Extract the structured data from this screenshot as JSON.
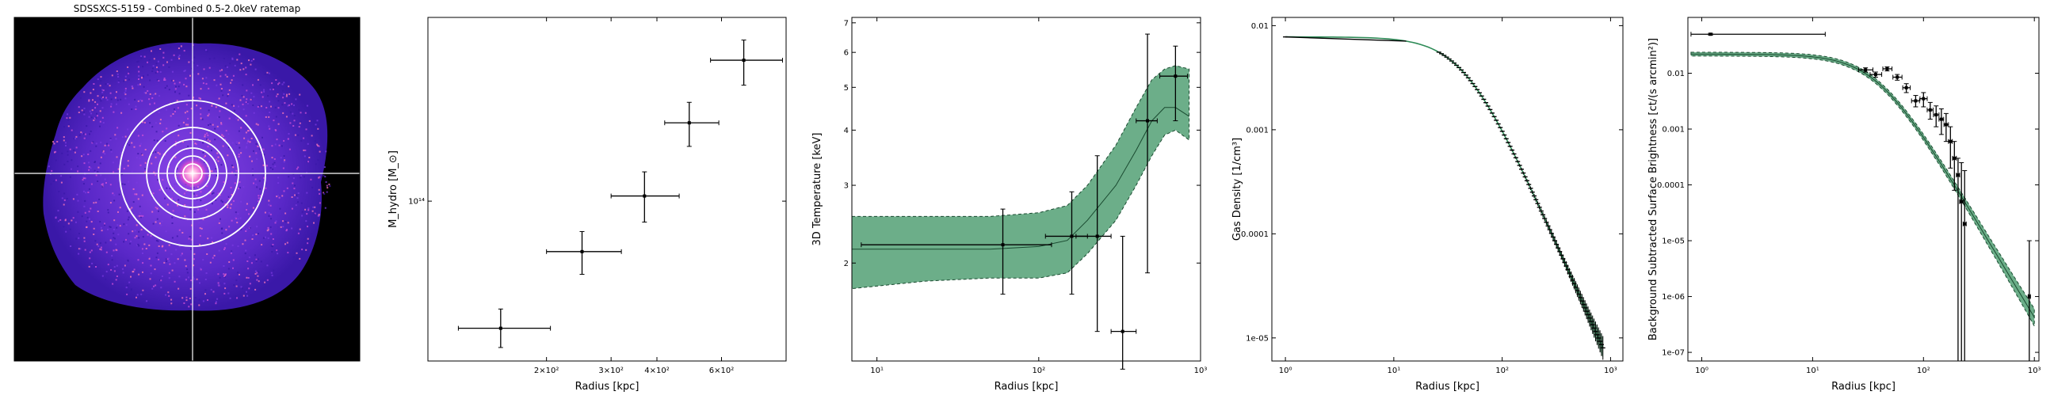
{
  "chart_data": [
    {
      "type": "image",
      "title": "SDSSXCS-5159 - Combined 0.5-2.0keV ratemap",
      "colormap": [
        "#0a0030",
        "#3a18a8",
        "#7a3ae0",
        "#d050d8",
        "#ff7ab8",
        "#ffd0f0"
      ],
      "background": "#000000",
      "annotations": [
        "crosshair",
        "concentric annuli"
      ]
    },
    {
      "type": "scatter",
      "xlabel": "Radius [kpc]",
      "ylabel": "M_hydro [M_⊙]",
      "xscale": "log",
      "yscale": "log",
      "xlim": [
        95,
        900
      ],
      "ylim": [
        22000000000000,
        570000000000000
      ],
      "xticks": [
        {
          "v": 200,
          "label": "2×10²"
        },
        {
          "v": 300,
          "label": "3×10²"
        },
        {
          "v": 400,
          "label": "4×10²"
        },
        {
          "v": 600,
          "label": "6×10²"
        }
      ],
      "yticks": [
        {
          "v": 100000000000000,
          "label": "10¹⁴"
        }
      ],
      "points": [
        {
          "x": 150,
          "xerr": [
            115,
            205
          ],
          "y": 30000000000000,
          "yerr": [
            25000000000000,
            36000000000000
          ]
        },
        {
          "x": 250,
          "xerr": [
            200,
            320
          ],
          "y": 62000000000000,
          "yerr": [
            50000000000000,
            75000000000000
          ]
        },
        {
          "x": 370,
          "xerr": [
            300,
            460
          ],
          "y": 105000000000000,
          "yerr": [
            82000000000000,
            132000000000000
          ]
        },
        {
          "x": 490,
          "xerr": [
            420,
            590
          ],
          "y": 210000000000000,
          "yerr": [
            168000000000000,
            255000000000000
          ]
        },
        {
          "x": 690,
          "xerr": [
            560,
            880
          ],
          "y": 380000000000000,
          "yerr": [
            300000000000000,
            460000000000000
          ]
        }
      ]
    },
    {
      "type": "line",
      "xlabel": "Radius [kpc]",
      "ylabel": "3D Temperature [keV]",
      "xscale": "log",
      "yscale": "log",
      "xlim": [
        7,
        1000
      ],
      "ylim": [
        1.2,
        7.2
      ],
      "xticks": [
        {
          "v": 10,
          "label": "10¹"
        },
        {
          "v": 100,
          "label": "10²"
        },
        {
          "v": 1000,
          "label": "10³"
        }
      ],
      "yticks": [
        {
          "v": 2,
          "label": "2"
        },
        {
          "v": 3,
          "label": "3"
        },
        {
          "v": 4,
          "label": "4"
        },
        {
          "v": 5,
          "label": "5"
        },
        {
          "v": 6,
          "label": "6"
        },
        {
          "v": 7,
          "label": "7"
        }
      ],
      "band_color": "#2e8b57",
      "band": {
        "x": [
          7,
          20,
          50,
          100,
          150,
          200,
          300,
          400,
          500,
          600,
          700,
          850
        ],
        "lower": [
          1.75,
          1.82,
          1.85,
          1.85,
          1.9,
          2.1,
          2.5,
          3.0,
          3.5,
          3.9,
          4.0,
          3.8
        ],
        "upper": [
          2.55,
          2.55,
          2.55,
          2.6,
          2.7,
          3.0,
          3.7,
          4.5,
          5.2,
          5.5,
          5.6,
          5.5
        ],
        "model": [
          2.15,
          2.15,
          2.15,
          2.18,
          2.25,
          2.5,
          3.0,
          3.6,
          4.2,
          4.5,
          4.5,
          4.3
        ]
      },
      "points": [
        {
          "x": 60,
          "xerr": [
            8,
            120
          ],
          "y": 2.2,
          "yerr": [
            1.7,
            2.65
          ]
        },
        {
          "x": 160,
          "xerr": [
            110,
            200
          ],
          "y": 2.3,
          "yerr": [
            1.7,
            2.9
          ]
        },
        {
          "x": 230,
          "xerr": [
            170,
            280
          ],
          "y": 2.3,
          "yerr": [
            1.4,
            3.5
          ]
        },
        {
          "x": 330,
          "xerr": [
            280,
            400
          ],
          "y": 1.4,
          "yerr": [
            1.15,
            2.3
          ]
        },
        {
          "x": 470,
          "xerr": [
            400,
            540
          ],
          "y": 4.2,
          "yerr": [
            1.9,
            6.6
          ]
        },
        {
          "x": 700,
          "xerr": [
            560,
            830
          ],
          "y": 5.3,
          "yerr": [
            4.2,
            6.2
          ]
        }
      ]
    },
    {
      "type": "line",
      "xlabel": "Radius [kpc]",
      "ylabel": "Gas Density [1/cm³]",
      "xscale": "log",
      "yscale": "log",
      "xlim": [
        0.75,
        1300
      ],
      "ylim": [
        6e-06,
        0.012
      ],
      "xticks": [
        {
          "v": 1,
          "label": "10⁰"
        },
        {
          "v": 10,
          "label": "10¹"
        },
        {
          "v": 100,
          "label": "10²"
        },
        {
          "v": 1000,
          "label": "10³"
        }
      ],
      "yticks": [
        {
          "v": 0.01,
          "label": "0.01"
        },
        {
          "v": 0.001,
          "label": "0.001"
        },
        {
          "v": 0.0001,
          "label": "0.0001"
        },
        {
          "v": 1e-05,
          "label": "1e-05"
        }
      ],
      "line_color": "#2e8b57",
      "curve": {
        "n0": 0.0078,
        "rc": 45,
        "beta": 0.78
      },
      "data_range": [
        1,
        850
      ]
    },
    {
      "type": "line",
      "xlabel": "Radius [kpc]",
      "ylabel": "Background Subtracted Surface Brightness [ct/(s arcmin²)]",
      "xscale": "log",
      "yscale": "log",
      "xlim": [
        0.75,
        1100
      ],
      "ylim": [
        7e-08,
        0.1
      ],
      "xticks": [
        {
          "v": 1,
          "label": "10⁰"
        },
        {
          "v": 10,
          "label": "10¹"
        },
        {
          "v": 100,
          "label": "10²"
        },
        {
          "v": 1000,
          "label": "10³"
        }
      ],
      "yticks": [
        {
          "v": 0.01,
          "label": "0.01"
        },
        {
          "v": 0.001,
          "label": "0.001"
        },
        {
          "v": 0.0001,
          "label": "0.0001"
        },
        {
          "v": 1e-05,
          "label": "1e-05"
        },
        {
          "v": 1e-06,
          "label": "1e-06"
        },
        {
          "v": 1e-07,
          "label": "1e-07"
        }
      ],
      "band_color": "#2e8b57",
      "curve": {
        "S0": 0.022,
        "rc": 38,
        "beta": 0.72
      },
      "points": [
        {
          "x": 1.2,
          "xerr": [
            0.8,
            13
          ],
          "y": 0.05,
          "yerr": [
            0.048,
            0.052
          ]
        },
        {
          "x": 30,
          "xerr": [
            26,
            35
          ],
          "y": 0.0115,
          "yerr": [
            0.0105,
            0.0125
          ]
        },
        {
          "x": 37,
          "xerr": [
            33,
            42
          ],
          "y": 0.0095,
          "yerr": [
            0.0085,
            0.0105
          ]
        },
        {
          "x": 47,
          "xerr": [
            43,
            52
          ],
          "y": 0.012,
          "yerr": [
            0.011,
            0.013
          ]
        },
        {
          "x": 58,
          "xerr": [
            53,
            64
          ],
          "y": 0.0085,
          "yerr": [
            0.0075,
            0.0095
          ]
        },
        {
          "x": 70,
          "xerr": [
            65,
            76
          ],
          "y": 0.0055,
          "yerr": [
            0.0045,
            0.0065
          ]
        },
        {
          "x": 85,
          "xerr": [
            78,
            92
          ],
          "y": 0.0032,
          "yerr": [
            0.0025,
            0.004
          ]
        },
        {
          "x": 100,
          "xerr": [
            93,
            108
          ],
          "y": 0.0035,
          "yerr": [
            0.0025,
            0.0045
          ]
        },
        {
          "x": 115,
          "xerr": [
            108,
            122
          ],
          "y": 0.0022,
          "yerr": [
            0.0015,
            0.003
          ]
        },
        {
          "x": 130,
          "xerr": [
            123,
            138
          ],
          "y": 0.0018,
          "yerr": [
            0.0011,
            0.0026
          ]
        },
        {
          "x": 145,
          "xerr": [
            138,
            152
          ],
          "y": 0.0015,
          "yerr": [
            0.0008,
            0.0023
          ]
        },
        {
          "x": 160,
          "xerr": [
            153,
            168
          ],
          "y": 0.0012,
          "yerr": [
            0.0006,
            0.0019
          ]
        },
        {
          "x": 175,
          "xerr": [
            168,
            182
          ],
          "y": 0.0006,
          "yerr": [
            0.0002,
            0.0011
          ]
        },
        {
          "x": 190,
          "xerr": [
            183,
            198
          ],
          "y": 0.0003,
          "yerr": [
            8e-05,
            0.0006
          ]
        },
        {
          "x": 205,
          "xerr": [
            198,
            212
          ],
          "y": 0.00015,
          "yerr": [
            7e-08,
            0.0003
          ]
        },
        {
          "x": 220,
          "xerr": [
            212,
            228
          ],
          "y": 5e-05,
          "yerr": [
            7e-08,
            0.00025
          ]
        },
        {
          "x": 235,
          "xerr": [
            228,
            243
          ],
          "y": 2e-05,
          "yerr": [
            7e-08,
            0.00018
          ]
        },
        {
          "x": 900,
          "xerr": [
            880,
            920
          ],
          "y": 1e-06,
          "yerr": [
            7e-08,
            1e-05
          ]
        }
      ]
    }
  ]
}
